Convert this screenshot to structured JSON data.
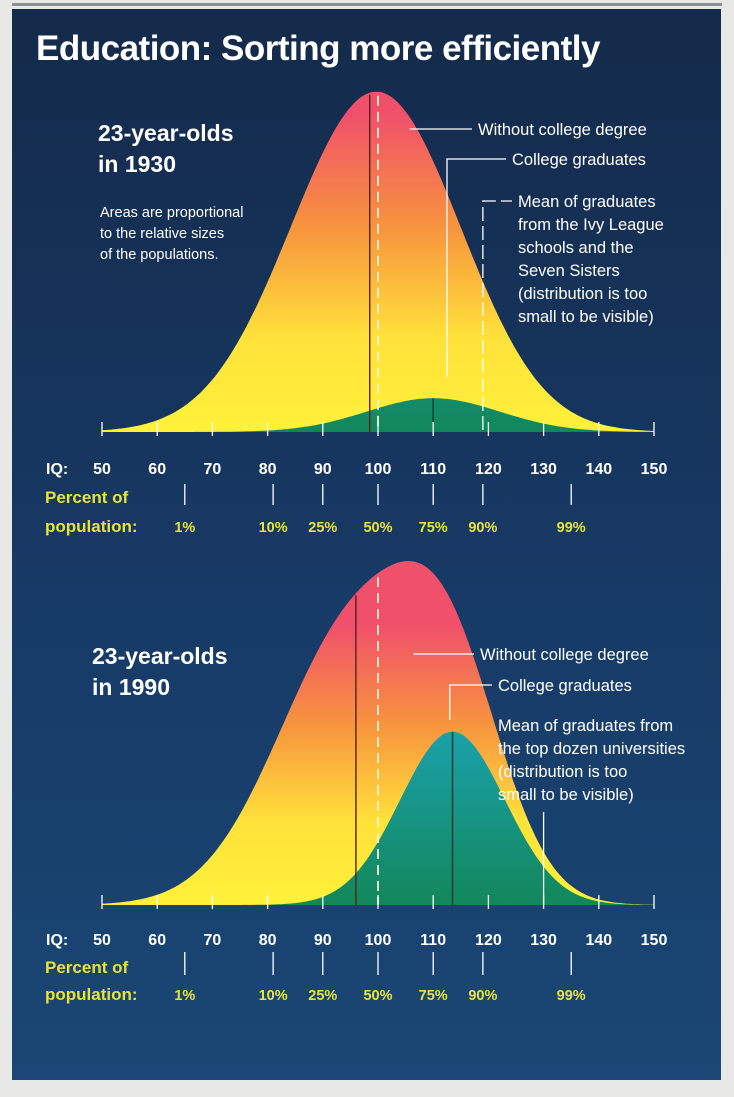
{
  "title": "Education: Sorting more efficiently",
  "chart_data": [
    {
      "type": "area",
      "panel_title": [
        "23-year-olds",
        "in 1930"
      ],
      "note": [
        "Areas are proportional",
        "to the relative sizes",
        "of the populations."
      ],
      "x_axis_label": "IQ:",
      "x_ticks": [
        50,
        60,
        70,
        80,
        90,
        100,
        110,
        120,
        130,
        140,
        150
      ],
      "xlim": [
        50,
        150
      ],
      "percentile_label": [
        "Percent of",
        "population:"
      ],
      "percentiles": [
        {
          "label": "1%",
          "iq": 65
        },
        {
          "label": "10%",
          "iq": 81
        },
        {
          "label": "25%",
          "iq": 90
        },
        {
          "label": "50%",
          "iq": 100
        },
        {
          "label": "75%",
          "iq": 110
        },
        {
          "label": "90%",
          "iq": 119
        },
        {
          "label": "99%",
          "iq": 135
        }
      ],
      "series": [
        {
          "name": "Without college degree",
          "mean": 98.5,
          "sd": 15,
          "relative_size": 1.0,
          "color": "#ffe83a"
        },
        {
          "name": "College graduates",
          "mean": 110,
          "sd": 12,
          "relative_size": 0.085,
          "color": "#1a9a7c"
        }
      ],
      "callouts": [
        {
          "lines": [
            "Without college degree"
          ],
          "iq": 98.5
        },
        {
          "lines": [
            "College graduates"
          ],
          "iq": 112.5
        },
        {
          "lines": [
            "Mean of graduates",
            "from the Ivy League",
            "schools and the",
            "Seven Sisters",
            "(distribution is too",
            "small to be visible)"
          ],
          "iq": 119
        }
      ]
    },
    {
      "type": "area",
      "panel_title": [
        "23-year-olds",
        "in 1990"
      ],
      "note": [],
      "x_axis_label": "IQ:",
      "x_ticks": [
        50,
        60,
        70,
        80,
        90,
        100,
        110,
        120,
        130,
        140,
        150
      ],
      "xlim": [
        50,
        150
      ],
      "percentile_label": [
        "Percent of",
        "population:"
      ],
      "percentiles": [
        {
          "label": "1%",
          "iq": 65
        },
        {
          "label": "10%",
          "iq": 81
        },
        {
          "label": "25%",
          "iq": 90
        },
        {
          "label": "50%",
          "iq": 100
        },
        {
          "label": "75%",
          "iq": 110
        },
        {
          "label": "90%",
          "iq": 119
        },
        {
          "label": "99%",
          "iq": 135
        }
      ],
      "series": [
        {
          "name": "Without college degree",
          "mean": 96,
          "sd": 14,
          "relative_size": 1.0,
          "color": "#ffe83a"
        },
        {
          "name": "College graduates",
          "mean": 113.5,
          "sd": 9.5,
          "relative_size": 0.42,
          "color": "#1a9a7c"
        }
      ],
      "callouts": [
        {
          "lines": [
            "Without college degree"
          ],
          "iq": 101
        },
        {
          "lines": [
            "College graduates"
          ],
          "iq": 113
        },
        {
          "lines": [
            "Mean of graduates from",
            "the top dozen universities",
            "(distribution is too",
            "small to be visible)"
          ],
          "iq": 130
        }
      ]
    }
  ]
}
